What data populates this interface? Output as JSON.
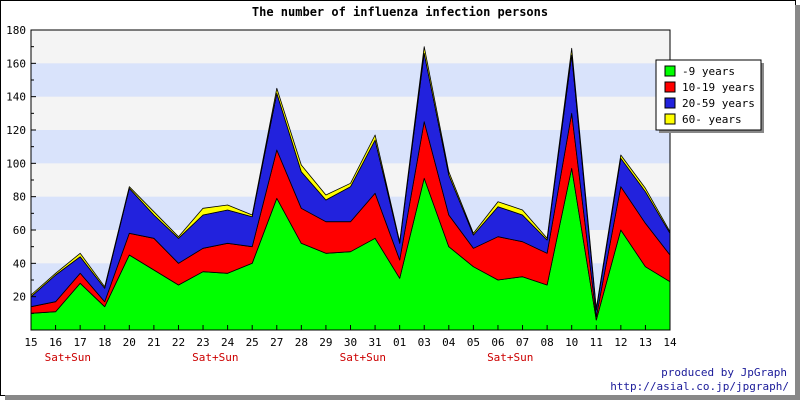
{
  "chart_data": {
    "type": "area",
    "stacked": true,
    "title": "The number of influenza infection persons",
    "ylim": [
      0,
      180
    ],
    "yticks": [
      "20",
      "40",
      "60",
      "80",
      "100",
      "120",
      "140",
      "160",
      "180"
    ],
    "categories": [
      "15",
      "16",
      "17",
      "18",
      "20",
      "21",
      "22",
      "23",
      "24",
      "25",
      "27",
      "28",
      "29",
      "30",
      "31",
      "01",
      "03",
      "04",
      "05",
      "06",
      "07",
      "08",
      "10",
      "11",
      "12",
      "13",
      "14"
    ],
    "weekend_label": "Sat+Sun",
    "weekend_after_index": [
      1,
      7,
      13,
      19
    ],
    "series": [
      {
        "name": "-9 years",
        "color": "#00ff00",
        "values": [
          10,
          11,
          28,
          14,
          45,
          36,
          27,
          35,
          34,
          40,
          79,
          52,
          46,
          47,
          55,
          31,
          91,
          50,
          38,
          30,
          32,
          27,
          97,
          6,
          60,
          38,
          29
        ]
      },
      {
        "name": "10-19 years",
        "color": "#ff0000",
        "values": [
          4,
          6,
          6,
          3,
          13,
          19,
          13,
          14,
          18,
          10,
          29,
          21,
          19,
          18,
          27,
          11,
          34,
          19,
          11,
          26,
          21,
          19,
          33,
          2,
          26,
          26,
          16
        ]
      },
      {
        "name": "20-59 years",
        "color": "#2222dd",
        "values": [
          6,
          16,
          10,
          8,
          27,
          14,
          15,
          20,
          20,
          18,
          34,
          22,
          13,
          21,
          32,
          10,
          41,
          24,
          8,
          18,
          16,
          8,
          35,
          4,
          17,
          19,
          13
        ]
      },
      {
        "name": "60- years",
        "color": "#ffff00",
        "values": [
          1,
          1,
          2,
          1,
          1,
          2,
          1,
          4,
          3,
          1,
          3,
          4,
          3,
          2,
          3,
          1,
          4,
          2,
          1,
          3,
          3,
          1,
          4,
          1,
          2,
          2,
          1
        ]
      }
    ],
    "legend_position": "right",
    "grid": true
  },
  "credit": {
    "line1": "produced by JpGraph",
    "line2": "http://asial.co.jp/jpgraph/"
  }
}
